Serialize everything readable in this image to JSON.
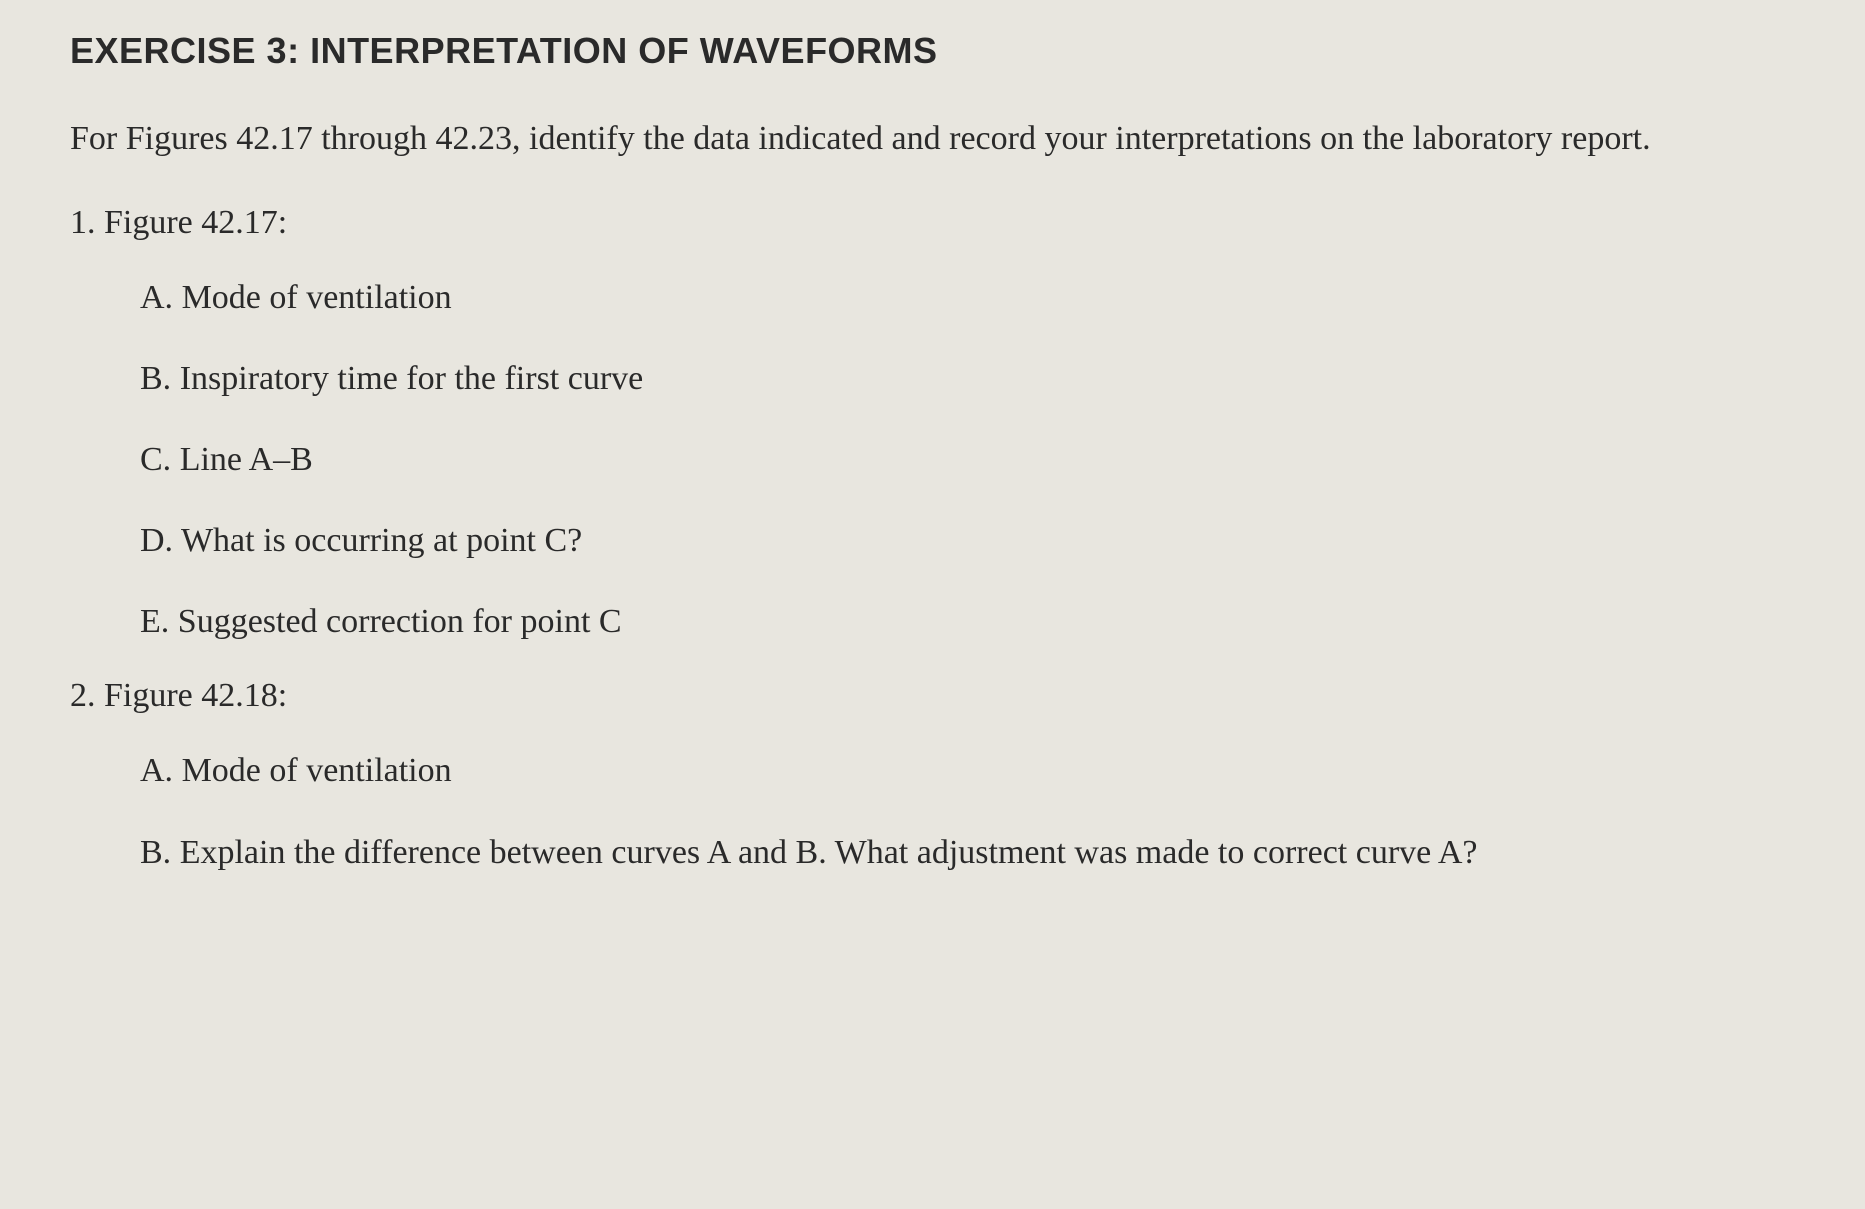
{
  "page": {
    "background_color": "#e8e6df",
    "text_color": "#2a2a2a",
    "title_font": "Arial",
    "body_font": "Georgia",
    "title_fontsize": 36,
    "body_fontsize": 34
  },
  "exercise": {
    "title": "EXERCISE 3: INTERPRETATION OF WAVEFORMS",
    "intro": "For Figures 42.17 through 42.23, identify the data indicated and record your interpretations on the laboratory report.",
    "questions": [
      {
        "number": "1.",
        "heading": "Figure 42.17:",
        "items": [
          {
            "letter": "A.",
            "text": "Mode of ventilation"
          },
          {
            "letter": "B.",
            "text": "Inspiratory time for the first curve"
          },
          {
            "letter": "C.",
            "text": "Line A–B"
          },
          {
            "letter": "D.",
            "text": "What is occurring at point C?"
          },
          {
            "letter": "E.",
            "text": "Suggested correction for point C"
          }
        ]
      },
      {
        "number": "2.",
        "heading": "Figure 42.18:",
        "items": [
          {
            "letter": "A.",
            "text": "Mode of ventilation"
          },
          {
            "letter": "B.",
            "text": "Explain the difference between curves A and B. What adjustment was made to correct curve A?"
          }
        ]
      }
    ]
  }
}
